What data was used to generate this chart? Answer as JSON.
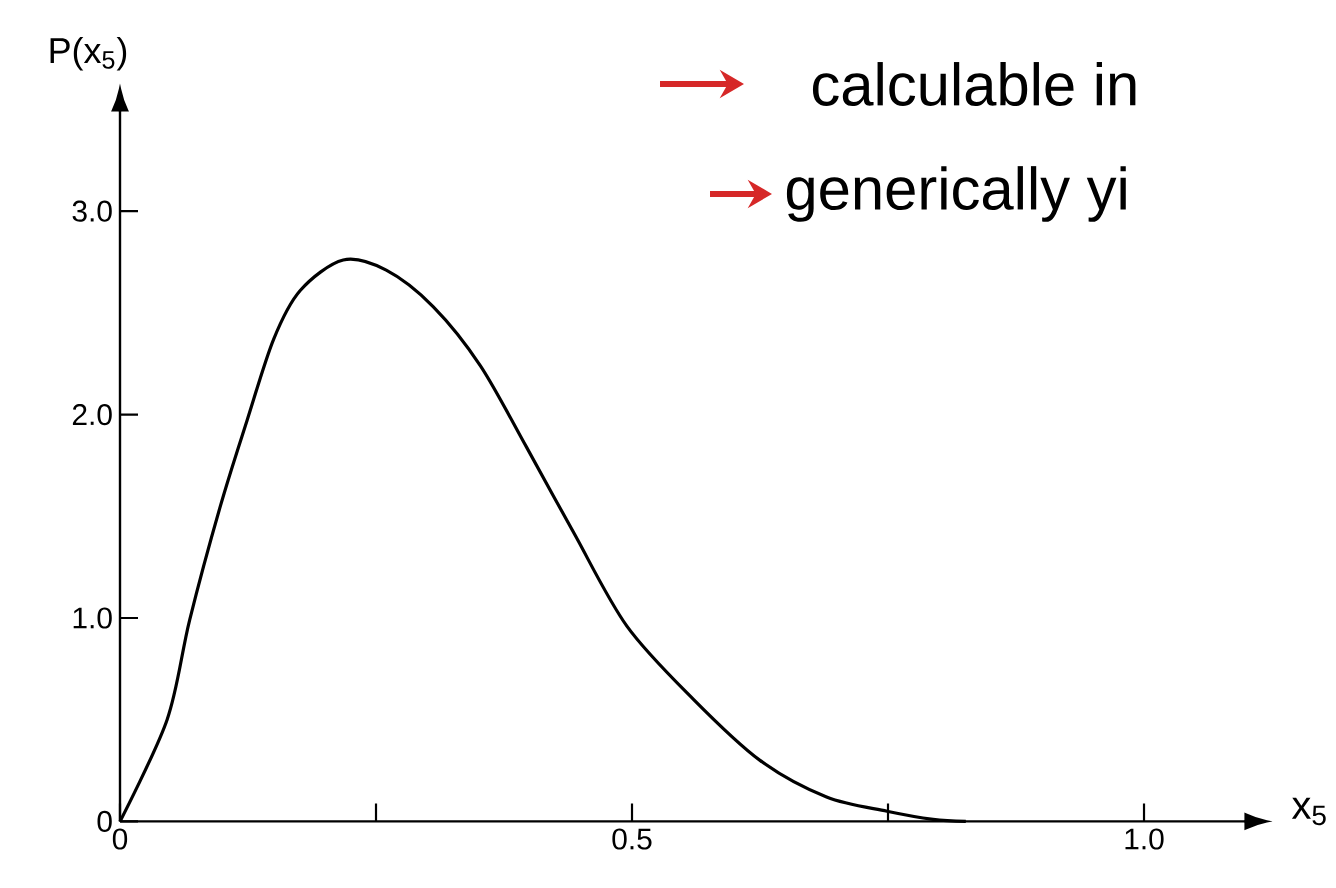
{
  "chart_data": {
    "type": "line",
    "xlabel": "x$_{5}$",
    "ylabel": "P(x$_{5}$)",
    "xlim": [
      0,
      1.1
    ],
    "ylim": [
      0,
      3.5
    ],
    "xticks": [
      0,
      {
        "value": 0.25,
        "label": null
      },
      0.5,
      {
        "value": 0.75,
        "label": null
      },
      {
        "value": 1.0,
        "label": "1.0"
      }
    ],
    "yticks": [
      0,
      {
        "value": 1.0,
        "label": "1.0"
      },
      {
        "value": 2.0,
        "label": "2.0"
      },
      {
        "value": 3.0,
        "label": "3.0"
      }
    ],
    "grid": false,
    "marker": "none",
    "line_style": "solid",
    "annotations": [
      "calculable in",
      "generically yi"
    ],
    "series": [
      {
        "color": "#000000",
        "x": [
          0,
          0.046,
          0.068,
          0.098,
          0.124,
          0.15,
          0.176,
          0.218,
          0.26,
          0.306,
          0.352,
          0.397,
          0.443,
          0.495,
          0.56,
          0.625,
          0.69,
          0.749,
          0.794,
          0.826
        ],
        "values": [
          0,
          0.5,
          0.99,
          1.55,
          1.97,
          2.37,
          2.61,
          2.76,
          2.71,
          2.53,
          2.24,
          1.84,
          1.42,
          0.96,
          0.6,
          0.3,
          0.12,
          0.05,
          0.01,
          0
        ]
      }
    ]
  }
}
